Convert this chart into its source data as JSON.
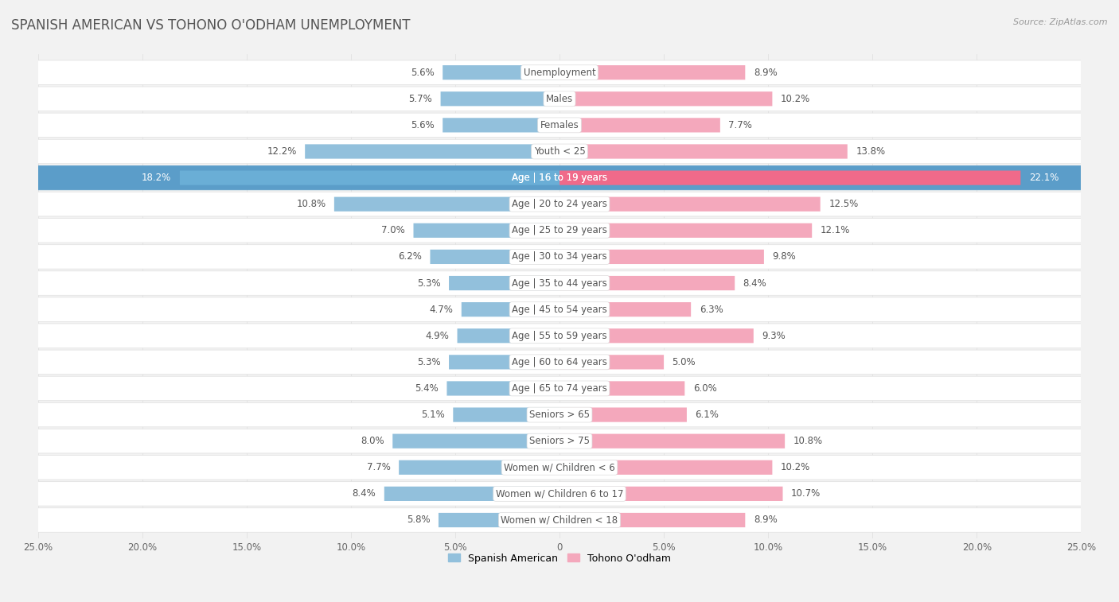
{
  "title": "SPANISH AMERICAN VS TOHONO O'ODHAM UNEMPLOYMENT",
  "source": "Source: ZipAtlas.com",
  "categories": [
    "Unemployment",
    "Males",
    "Females",
    "Youth < 25",
    "Age | 16 to 19 years",
    "Age | 20 to 24 years",
    "Age | 25 to 29 years",
    "Age | 30 to 34 years",
    "Age | 35 to 44 years",
    "Age | 45 to 54 years",
    "Age | 55 to 59 years",
    "Age | 60 to 64 years",
    "Age | 65 to 74 years",
    "Seniors > 65",
    "Seniors > 75",
    "Women w/ Children < 6",
    "Women w/ Children 6 to 17",
    "Women w/ Children < 18"
  ],
  "spanish_american": [
    5.6,
    5.7,
    5.6,
    12.2,
    18.2,
    10.8,
    7.0,
    6.2,
    5.3,
    4.7,
    4.9,
    5.3,
    5.4,
    5.1,
    8.0,
    7.7,
    8.4,
    5.8
  ],
  "tohono_oodham": [
    8.9,
    10.2,
    7.7,
    13.8,
    22.1,
    12.5,
    12.1,
    9.8,
    8.4,
    6.3,
    9.3,
    5.0,
    6.0,
    6.1,
    10.8,
    10.2,
    10.7,
    8.9
  ],
  "blue_color": "#92c0dc",
  "pink_color": "#f4a8bc",
  "blue_highlight": "#6aaed6",
  "pink_highlight": "#f06a8a",
  "bg_color": "#f2f2f2",
  "row_bg": "#ffffff",
  "row_border": "#e0e0e0",
  "highlight_row_bg": "#5b9dc9",
  "axis_max": 25.0,
  "legend_label_left": "Spanish American",
  "legend_label_right": "Tohono O'odham",
  "title_fontsize": 12,
  "label_fontsize": 8.5,
  "value_fontsize": 8.5
}
